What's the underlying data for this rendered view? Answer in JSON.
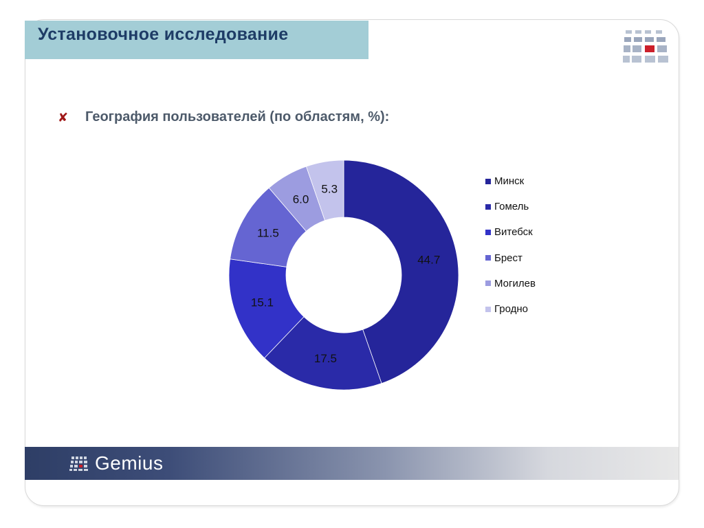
{
  "slide": {
    "title": "Установочное исследование",
    "bullet_icon": "x-mark-icon",
    "bullet_text": "География пользователей (по областям, %):",
    "footer_brand": "Gemius",
    "accent_color": "#a3cdd6",
    "title_color": "#1e3c66"
  },
  "chart_data": {
    "type": "pie",
    "variant": "donut",
    "categories": [
      "Минск",
      "Гомель",
      "Витебск",
      "Брест",
      "Могилев",
      "Гродно"
    ],
    "values": [
      44.7,
      17.5,
      15.1,
      11.5,
      6.0,
      5.3
    ],
    "labels": [
      "44.7",
      "17.5",
      "15.1",
      "11.5",
      "6.0",
      "5.3"
    ],
    "colors": [
      "#25259a",
      "#2a2aa8",
      "#3232c8",
      "#6565d2",
      "#9c9ce0",
      "#c3c3ec"
    ],
    "legend_position": "right",
    "start_angle_deg": 0,
    "direction": "clockwise"
  }
}
